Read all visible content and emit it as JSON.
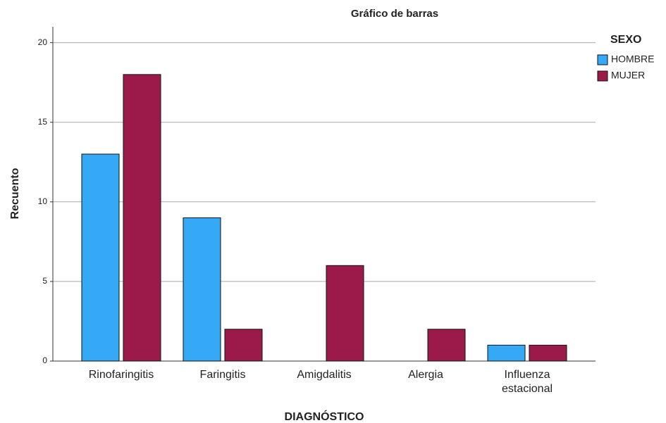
{
  "chart_data": {
    "type": "bar",
    "title": "Gráfico de barras",
    "x_label": "DIAGNÓSTICO",
    "y_label": "Recuento",
    "legend_title": "SEXO",
    "categories": [
      "Rinofaringitis",
      "Faringitis",
      "Amigdalitis",
      "Alergia",
      "Influenza estacional"
    ],
    "series": [
      {
        "name": "HOMBRE",
        "color": "#36a9f6",
        "values": [
          13,
          9,
          0,
          0,
          1
        ]
      },
      {
        "name": "MUJER",
        "color": "#9c1a4a",
        "values": [
          18,
          2,
          6,
          2,
          1
        ]
      }
    ],
    "ylim": [
      0,
      21
    ],
    "yticks": [
      0,
      5,
      10,
      15,
      20
    ],
    "grid": true,
    "legend": "right"
  }
}
